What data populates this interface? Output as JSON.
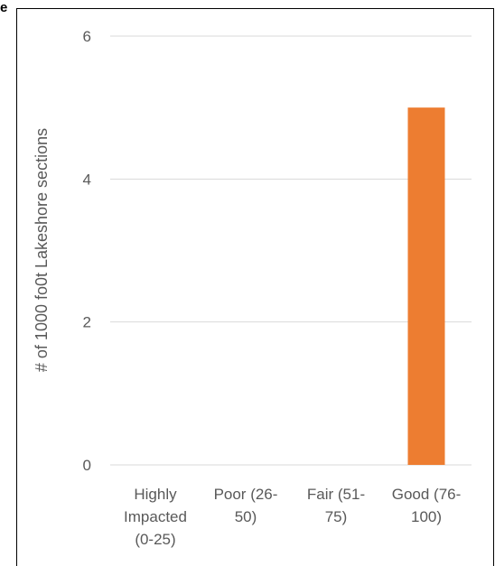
{
  "corner_text": "e",
  "chart_data": {
    "type": "bar",
    "categories": [
      [
        "Highly",
        "Impacted",
        "(0-25)"
      ],
      [
        "Poor (26-",
        "50)"
      ],
      [
        "Fair (51-",
        "75)"
      ],
      [
        "Good (76-",
        "100)"
      ]
    ],
    "values": [
      0,
      0,
      0,
      5
    ],
    "ylabel": "# of 1000 fo0t Lakeshore sections",
    "ylim": [
      0,
      6
    ],
    "yticks": [
      0,
      2,
      4,
      6
    ],
    "grid": true,
    "bar_color": "#ED7D31",
    "grid_color": "#D9D9D9",
    "text_color": "#595959"
  }
}
